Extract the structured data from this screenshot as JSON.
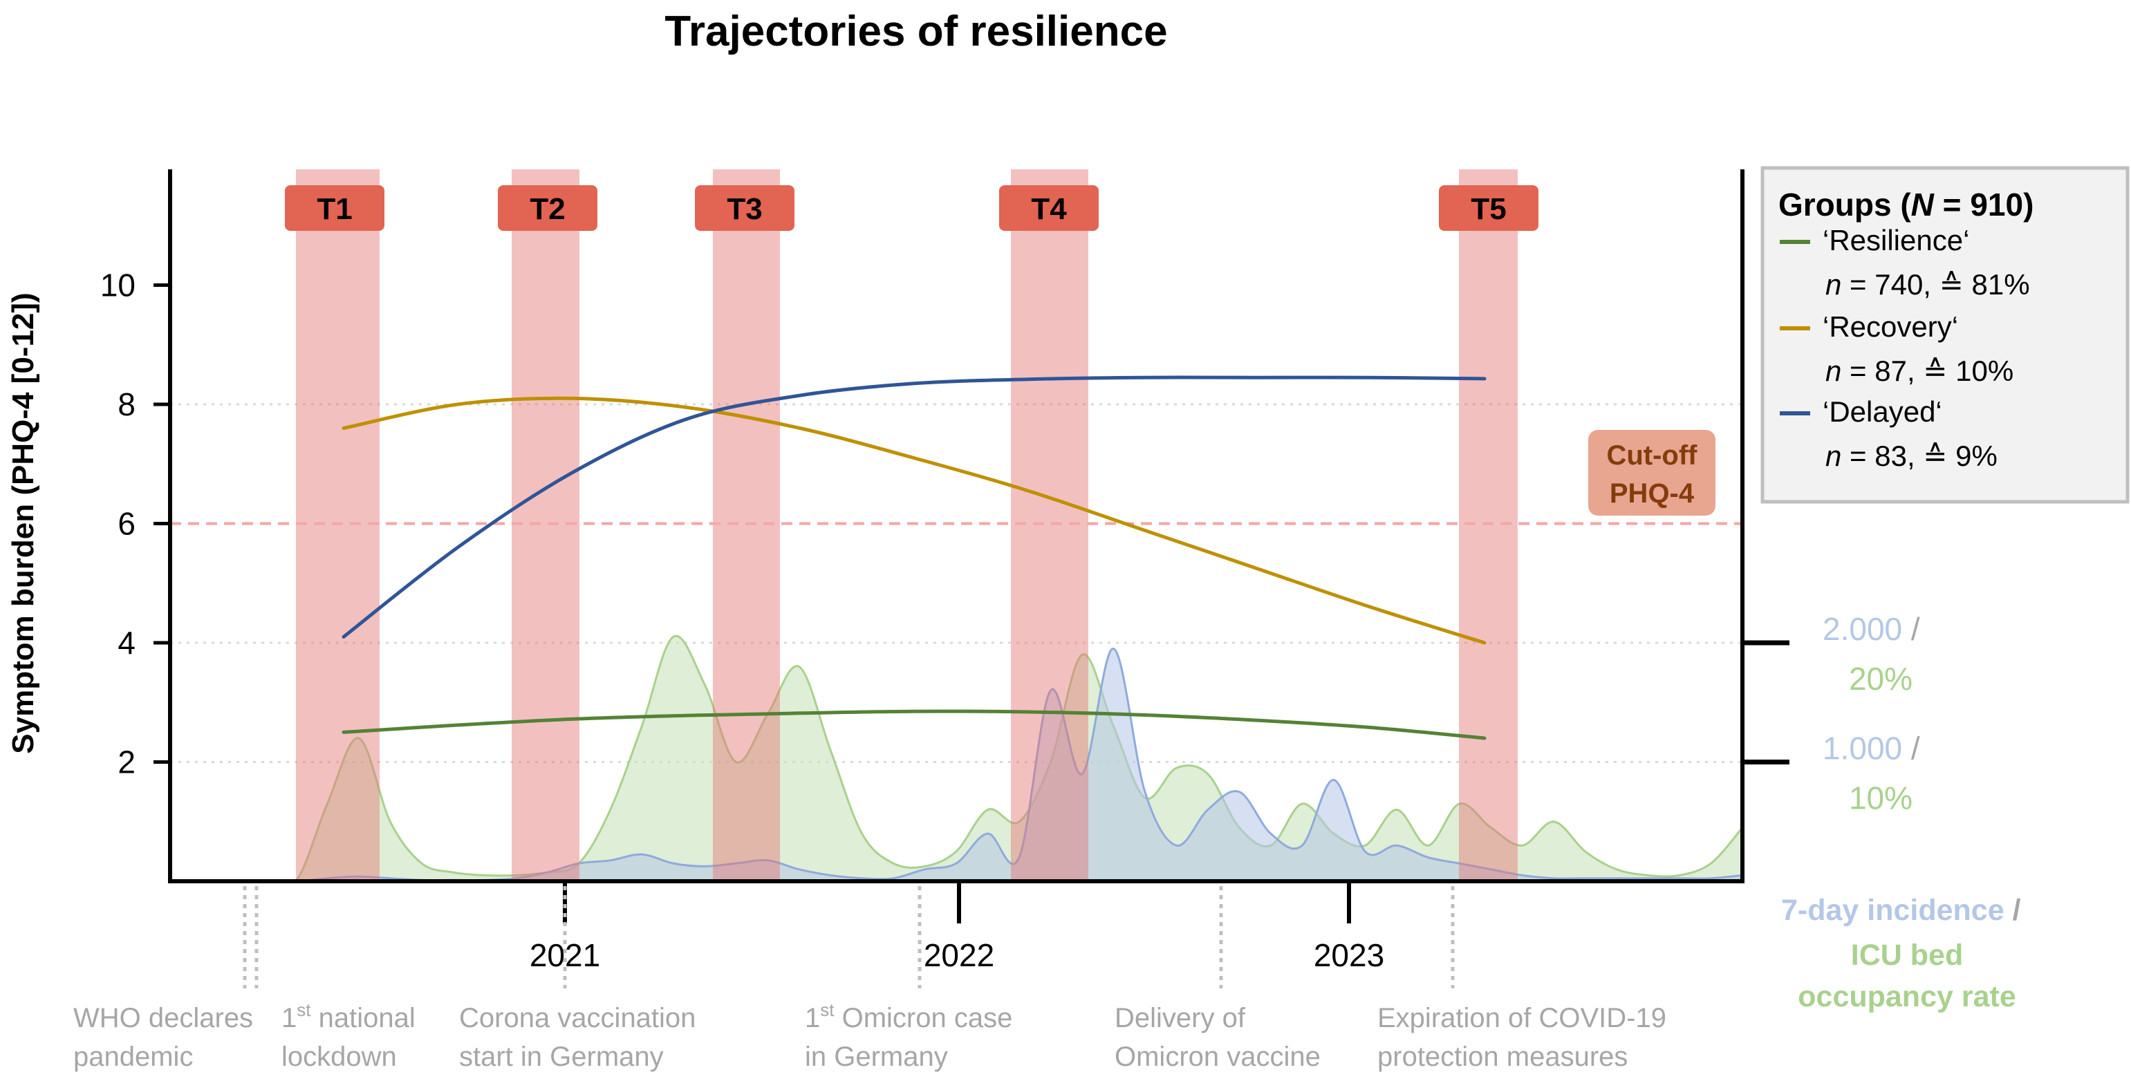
{
  "chart_data": {
    "type": "line",
    "title": "Trajectories of resilience",
    "ylabel": "Symptom burden (PHQ-4 [0-12])",
    "ylim": [
      0,
      12
    ],
    "y_ticks": [
      2,
      4,
      6,
      8,
      10
    ],
    "x_ticks": [
      "2021",
      "2022",
      "2023"
    ],
    "grid": "dotted at 2, 4, 8",
    "timepoints": [
      "T1",
      "T2",
      "T3",
      "T4",
      "T5"
    ],
    "cutoff": {
      "value": 6,
      "label_line1": "Cut-off",
      "label_line2": "PHQ-4"
    },
    "legend": {
      "title_prefix": "Groups (",
      "title_n": "N",
      "title_suffix": " = 910)",
      "entries": [
        {
          "label": "‘Resilience‘",
          "n_label": "n",
          "stats": " = 740, ≙ 81%",
          "color": "#548235"
        },
        {
          "label": "‘Recovery‘",
          "n_label": "n",
          "stats": " = 87, ≙ 10%",
          "color": "#bf9000"
        },
        {
          "label": "‘Delayed‘",
          "n_label": "n",
          "stats": " = 83, ≙ 9%",
          "color": "#2f5597"
        }
      ]
    },
    "series": [
      {
        "name": "Resilience",
        "color": "#548235",
        "x": [
          0,
          0.1,
          0.2,
          0.3,
          0.4,
          0.5,
          0.6,
          0.7,
          0.8,
          0.9,
          1.0
        ],
        "values": [
          2.5,
          2.62,
          2.72,
          2.78,
          2.82,
          2.85,
          2.84,
          2.79,
          2.7,
          2.58,
          2.4
        ]
      },
      {
        "name": "Recovery",
        "color": "#bf9000",
        "x": [
          0,
          0.1,
          0.2,
          0.3,
          0.4,
          0.5,
          0.6,
          0.7,
          0.8,
          0.9,
          1.0
        ],
        "values": [
          7.6,
          8.0,
          8.1,
          7.95,
          7.6,
          7.1,
          6.55,
          5.9,
          5.25,
          4.6,
          4.0
        ]
      },
      {
        "name": "Delayed",
        "color": "#2f5597",
        "x": [
          0,
          0.1,
          0.2,
          0.3,
          0.4,
          0.5,
          0.6,
          0.7,
          0.8,
          0.9,
          1.0
        ],
        "values": [
          4.1,
          5.6,
          6.85,
          7.75,
          8.15,
          8.35,
          8.42,
          8.45,
          8.45,
          8.45,
          8.43
        ]
      }
    ],
    "secondary_axis": {
      "ticks": [
        {
          "at": 2,
          "incidence": "1.000",
          "sep": " /",
          "icu": "10%"
        },
        {
          "at": 4,
          "incidence": "2.000",
          "sep": " /",
          "icu": "20%"
        }
      ],
      "title_incidence": "7-day incidence",
      "title_sep": " /",
      "title_icu_line1": "ICU bed",
      "title_icu_line2": "occupancy rate",
      "incidence_color": "#b4c7e7",
      "icu_color": "#a9d18e"
    },
    "events": [
      {
        "line1": "WHO declares",
        "line2": "pandemic"
      },
      {
        "line1": "1",
        "sup": "st",
        "line1b": " national",
        "line2": "lockdown"
      },
      {
        "line1": "Corona vaccination",
        "line2": "start in Germany"
      },
      {
        "line1": "1",
        "sup": "st",
        "line1b": " Omicron case",
        "line2": "in Germany"
      },
      {
        "line1": "Delivery of",
        "line2": "Omicron vaccine"
      },
      {
        "line1": "Expiration of COVID-19",
        "line2": "protection measures"
      }
    ],
    "icu_occupancy": {
      "x": [
        0.0,
        0.02,
        0.04,
        0.06,
        0.08,
        0.1,
        0.12,
        0.14,
        0.16,
        0.18,
        0.2,
        0.22,
        0.24,
        0.26,
        0.28,
        0.3,
        0.32,
        0.34,
        0.36,
        0.38,
        0.4,
        0.42,
        0.44,
        0.46,
        0.48,
        0.5,
        0.52,
        0.54,
        0.56,
        0.58,
        0.6,
        0.62,
        0.64,
        0.66,
        0.68,
        0.7,
        0.72,
        0.74,
        0.76,
        0.78,
        0.8,
        0.82,
        0.84,
        0.86,
        0.88,
        0.9,
        0.92,
        0.94,
        0.96,
        0.98,
        1.0
      ],
      "values": [
        0.0,
        0.0,
        0.0,
        0.0,
        0.0,
        1.3,
        2.4,
        1.0,
        0.3,
        0.15,
        0.1,
        0.1,
        0.15,
        0.3,
        1.2,
        2.6,
        4.1,
        3.3,
        2.0,
        2.8,
        3.6,
        2.2,
        0.8,
        0.3,
        0.25,
        0.5,
        1.2,
        1.0,
        2.0,
        3.8,
        2.6,
        1.4,
        1.9,
        1.8,
        0.9,
        0.6,
        1.3,
        0.8,
        0.6,
        1.2,
        0.6,
        1.3,
        0.9,
        0.6,
        1.0,
        0.5,
        0.2,
        0.1,
        0.1,
        0.3,
        0.9
      ]
    },
    "incidence": {
      "x": [
        0.0,
        0.02,
        0.04,
        0.06,
        0.08,
        0.1,
        0.12,
        0.14,
        0.16,
        0.18,
        0.2,
        0.22,
        0.24,
        0.26,
        0.28,
        0.3,
        0.32,
        0.34,
        0.36,
        0.38,
        0.4,
        0.42,
        0.44,
        0.46,
        0.48,
        0.5,
        0.52,
        0.54,
        0.56,
        0.58,
        0.6,
        0.62,
        0.64,
        0.66,
        0.68,
        0.7,
        0.72,
        0.74,
        0.76,
        0.78,
        0.8,
        0.82,
        0.84,
        0.86,
        0.88,
        0.9,
        0.92,
        0.94,
        0.96,
        0.98,
        1.0
      ],
      "values": [
        0.0,
        0.0,
        0.0,
        0.0,
        0.0,
        0.05,
        0.08,
        0.05,
        0.02,
        0.02,
        0.02,
        0.05,
        0.15,
        0.3,
        0.35,
        0.45,
        0.3,
        0.25,
        0.3,
        0.35,
        0.2,
        0.1,
        0.05,
        0.05,
        0.2,
        0.3,
        0.8,
        0.4,
        3.2,
        1.8,
        3.9,
        1.5,
        0.6,
        1.2,
        1.5,
        0.8,
        0.6,
        1.7,
        0.5,
        0.6,
        0.4,
        0.3,
        0.2,
        0.1,
        0.05,
        0.05,
        0.05,
        0.05,
        0.05,
        0.05,
        0.1
      ]
    }
  }
}
